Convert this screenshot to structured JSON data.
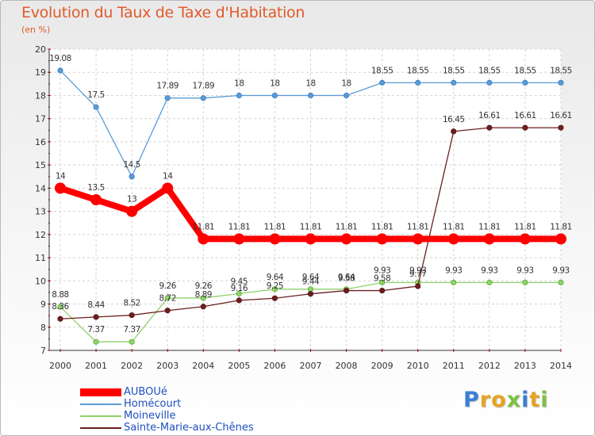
{
  "page": {
    "title": "Evolution du Taux de Taxe d'Habitation",
    "subtitle": "(en %)"
  },
  "brand": {
    "letters": [
      "P",
      "r",
      "o",
      "x",
      "i",
      "t",
      "i"
    ],
    "colors": [
      "#3a7fd5",
      "#e8a321",
      "#e8a321",
      "#7cc242",
      "#3a7fd5",
      "#e8a321",
      "#7cc242"
    ]
  },
  "chart_data": {
    "type": "line",
    "title": "Evolution du Taux de Taxe d'Habitation",
    "subtitle": "(en %)",
    "x": [
      "2000",
      "2001",
      "2002",
      "2003",
      "2004",
      "2005",
      "2006",
      "2007",
      "2008",
      "2009",
      "2010",
      "2011",
      "2012",
      "2013",
      "2014"
    ],
    "ylim": [
      7,
      20
    ],
    "yticks": [
      "7",
      "8",
      "9",
      "10",
      "11",
      "12",
      "13",
      "14",
      "15",
      "16",
      "17",
      "18",
      "19",
      "20"
    ],
    "grid": true,
    "legend_position": "bottom-left",
    "series": [
      {
        "name": "AUBOUé",
        "color": "#ff0000",
        "emphasis": "thick",
        "values": [
          14,
          13.5,
          13,
          14,
          11.81,
          11.81,
          11.81,
          11.81,
          11.81,
          11.81,
          11.81,
          11.81,
          11.81,
          11.81,
          11.81
        ],
        "labels": [
          "14",
          "13.5",
          "13",
          "14",
          "11.81",
          "11.81",
          "11.81",
          "11.81",
          "11.81",
          "11.81",
          "11.81",
          "11.81",
          "11.81",
          "11.81",
          "11.81"
        ]
      },
      {
        "name": "Homécourt",
        "color": "#5b9bd5",
        "emphasis": "thin",
        "values": [
          19.08,
          17.5,
          14.5,
          17.89,
          17.89,
          18,
          18,
          18,
          18,
          18.55,
          18.55,
          18.55,
          18.55,
          18.55,
          18.55
        ],
        "labels": [
          "19.08",
          "17.5",
          "14.5",
          "17.89",
          "17.89",
          "18",
          "18",
          "18",
          "18",
          "18.55",
          "18.55",
          "18.55",
          "18.55",
          "18.55",
          "18.55"
        ]
      },
      {
        "name": "Moineville",
        "color": "#8fd16a",
        "emphasis": "thin",
        "values": [
          8.88,
          7.37,
          7.37,
          9.26,
          9.26,
          9.45,
          9.64,
          9.64,
          9.64,
          9.93,
          9.93,
          9.93,
          9.93,
          9.93,
          9.93
        ],
        "labels": [
          "8.88",
          "7.37",
          "7.37",
          "9.26",
          "9.26",
          "9.45",
          "9.64",
          "9.64",
          "9.64",
          "9.93",
          "9.93",
          "9.93",
          "9.93",
          "9.93",
          "9.93"
        ]
      },
      {
        "name": "Sainte-Marie-aux-Chênes",
        "color": "#6b1f1f",
        "emphasis": "thin",
        "values": [
          8.36,
          8.44,
          8.52,
          8.72,
          8.89,
          9.16,
          9.25,
          9.44,
          9.58,
          9.58,
          9.77,
          16.45,
          16.61,
          16.61,
          16.61
        ],
        "labels": [
          "8.36",
          "8.44",
          "8.52",
          "8.72",
          "8.89",
          "9.16",
          "9.25",
          "9.44",
          "9.58",
          "9.58",
          "9.77",
          "16.45",
          "16.61",
          "16.61",
          "16.61"
        ]
      }
    ]
  }
}
